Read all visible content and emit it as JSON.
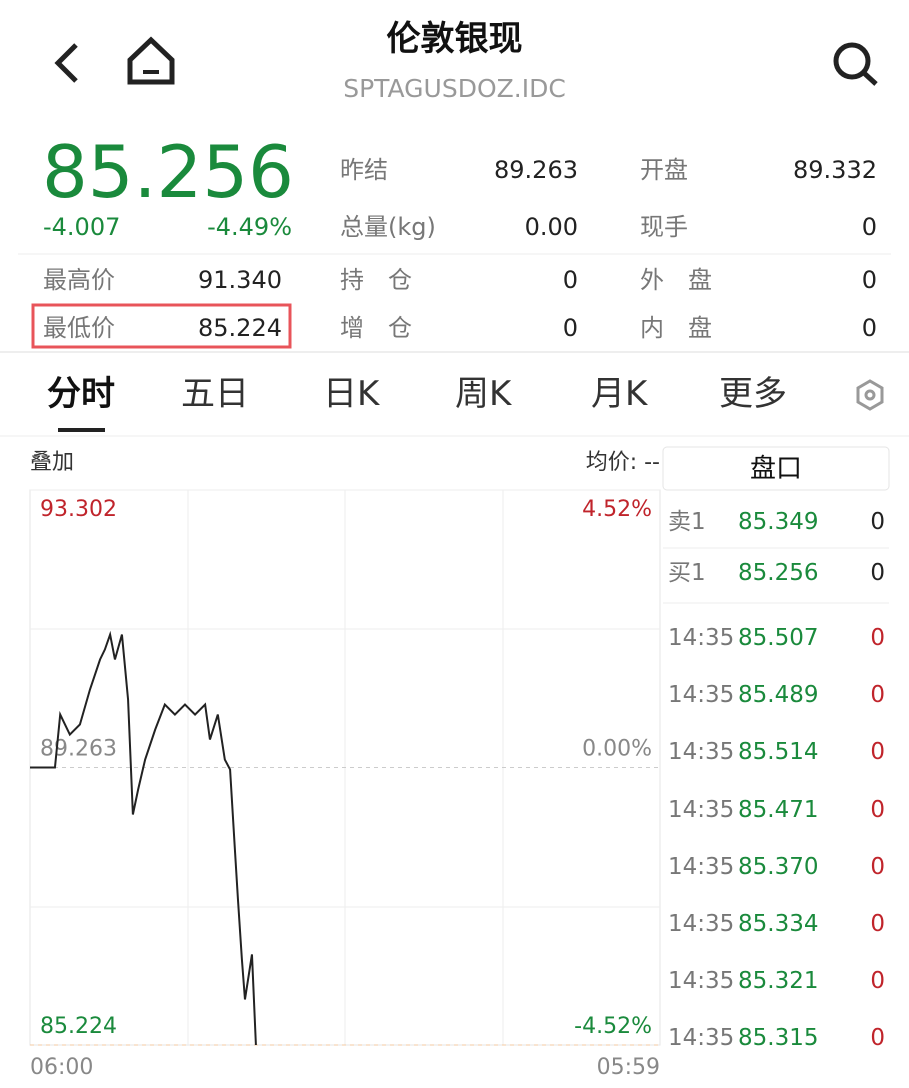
{
  "header": {
    "title": "伦敦银现",
    "code": "SPTAGUSDOZ.IDC"
  },
  "quote": {
    "price": "85.256",
    "change": "-4.007",
    "change_pct": "-4.49%",
    "fields": [
      {
        "label": "昨结",
        "value": "89.263"
      },
      {
        "label": "开盘",
        "value": "89.332"
      },
      {
        "label": "总量(kg)",
        "value": "0.00"
      },
      {
        "label": "现手",
        "value": "0"
      },
      {
        "label": "最高价",
        "value": "91.340"
      },
      {
        "label": "持　仓",
        "value": "0"
      },
      {
        "label": "外　盘",
        "value": "0"
      },
      {
        "label": "最低价",
        "value": "85.224"
      },
      {
        "label": "增　仓",
        "value": "0"
      },
      {
        "label": "内　盘",
        "value": "0"
      }
    ]
  },
  "tabs": [
    "分时",
    "五日",
    "日K",
    "周K",
    "月K",
    "更多"
  ],
  "toolbar": {
    "overlay": "叠加",
    "avg": "均价: --"
  },
  "chart_data": {
    "type": "line",
    "x": [
      0,
      57,
      69,
      91,
      114,
      137,
      160,
      171,
      183,
      194,
      210,
      224,
      235,
      247,
      263,
      286,
      308,
      331,
      354,
      377,
      400,
      411,
      429,
      445,
      457,
      468,
      475,
      484,
      491,
      507,
      516
    ],
    "series": [
      {
        "color": "#222222",
        "values": [
          89.263,
          89.263,
          90.034,
          89.743,
          89.889,
          90.398,
          90.835,
          90.98,
          91.198,
          90.835,
          91.198,
          90.252,
          88.579,
          88.943,
          89.379,
          89.816,
          90.18,
          90.034,
          90.18,
          90.034,
          90.18,
          89.67,
          90.034,
          89.379,
          89.234,
          88.07,
          87.342,
          86.469,
          85.887,
          86.542,
          85.224
        ]
      }
    ],
    "xlim": [
      0,
      1439
    ],
    "xticks": [
      {
        "value": 0,
        "label": "06:00"
      },
      {
        "value": 1439,
        "label": "05:59"
      }
    ],
    "ylim": [
      85.224,
      93.302
    ],
    "yticks": [
      93.302,
      89.263,
      85.224
    ],
    "y2lim": [
      -4.52,
      4.52
    ],
    "y2ticks": [
      {
        "value": 4.52,
        "label": "4.52%"
      },
      {
        "value": 0,
        "label": "0.00%"
      },
      {
        "value": -4.52,
        "label": "-4.52%"
      }
    ]
  },
  "order_book": {
    "title": "盘口",
    "levels": [
      {
        "label": "卖1",
        "price": "85.349",
        "volume": "0"
      },
      {
        "label": "买1",
        "price": "85.256",
        "volume": "0"
      }
    ],
    "trades": [
      {
        "time": "14:35",
        "price": "85.507",
        "volume": "0"
      },
      {
        "time": "14:35",
        "price": "85.489",
        "volume": "0"
      },
      {
        "time": "14:35",
        "price": "85.514",
        "volume": "0"
      },
      {
        "time": "14:35",
        "price": "85.471",
        "volume": "0"
      },
      {
        "time": "14:35",
        "price": "85.370",
        "volume": "0"
      },
      {
        "time": "14:35",
        "price": "85.334",
        "volume": "0"
      },
      {
        "time": "14:35",
        "price": "85.321",
        "volume": "0"
      },
      {
        "time": "14:35",
        "price": "85.315",
        "volume": "0"
      }
    ]
  }
}
